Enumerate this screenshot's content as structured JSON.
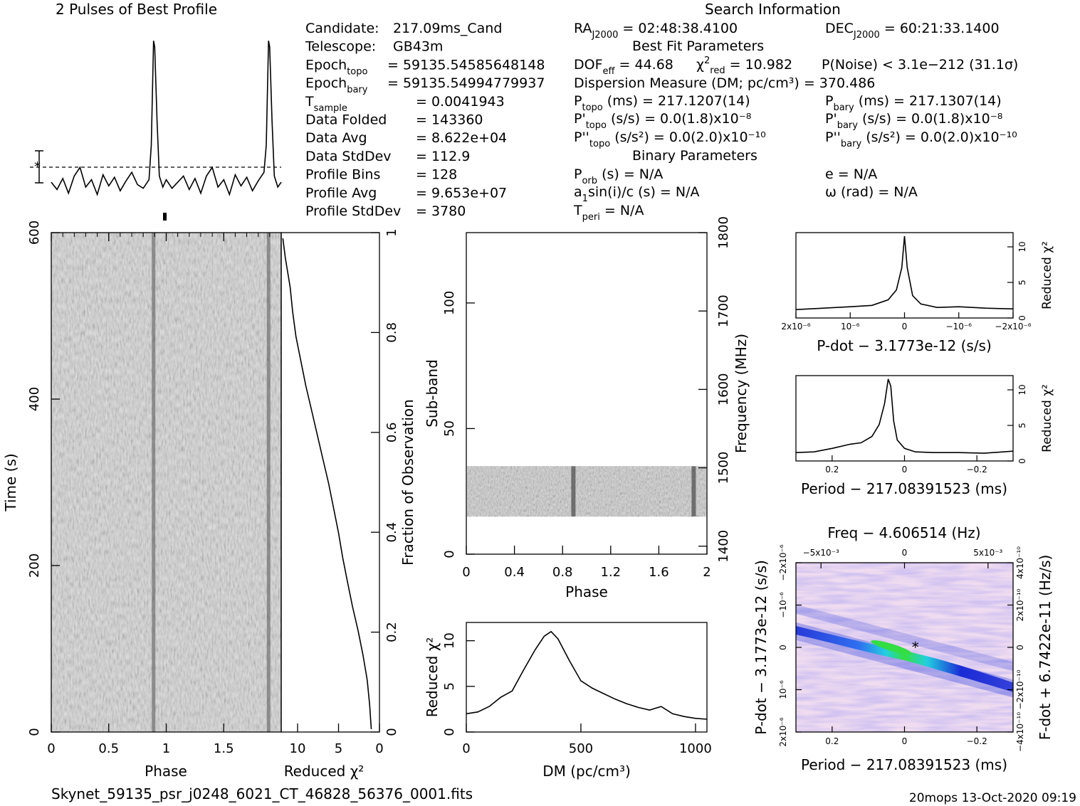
{
  "header": {
    "profile_title": "2 Pulses of Best Profile",
    "search_title": "Search Information",
    "best_fit_title": "Best Fit Parameters",
    "binary_title": "Binary Parameters"
  },
  "candidate_info": [
    {
      "label": "Candidate:",
      "value": "217.09ms_Cand"
    },
    {
      "label": "Telescope:",
      "value": "GB43m"
    },
    {
      "label": "Epoch",
      "sub": "topo",
      "value": "= 59135.54585648148"
    },
    {
      "label": "Epoch",
      "sub": "bary",
      "value": "= 59135.54994779937"
    },
    {
      "label": "T",
      "sub": "sample",
      "value": "=  0.0041943"
    },
    {
      "label": "Data Folded",
      "value": "=  143360"
    },
    {
      "label": "Data Avg",
      "value": "=  8.622e+04"
    },
    {
      "label": "Data StdDev",
      "value": "=  112.9"
    },
    {
      "label": "Profile Bins",
      "value": "=  128"
    },
    {
      "label": "Profile Avg",
      "value": "=  9.653e+07"
    },
    {
      "label": "Profile StdDev",
      "value": "=  3780"
    }
  ],
  "search_info": {
    "ra": {
      "label": "RA",
      "sub": "J2000",
      "value": "= 02:48:38.4100"
    },
    "dec": {
      "label": "DEC",
      "sub": "J2000",
      "value": "= 60:21:33.1400"
    },
    "dof": {
      "label": "DOF",
      "sub": "eff",
      "value": "= 44.68"
    },
    "chi2": {
      "label": "χ",
      "sup": "2",
      "sub": "red",
      "value": "= 10.982"
    },
    "pnoise": "P(Noise) < 3.1e−212  (31.1σ)",
    "dm": "Dispersion Measure (DM; pc/cm³) = 370.486",
    "p_topo": {
      "label": "P",
      "sub": "topo",
      "value": "(ms) =  217.1207(14)"
    },
    "p_bary": {
      "label": "P",
      "sub": "bary",
      "value": "(ms) =  217.1307(14)"
    },
    "pd_topo": {
      "label": "P'",
      "sub": "topo",
      "value": "(s/s) = 0.0(1.8)x10⁻⁸"
    },
    "pd_bary": {
      "label": "P'",
      "sub": "bary",
      "value": "(s/s) = 0.0(1.8)x10⁻⁸"
    },
    "pdd_topo": {
      "label": "P''",
      "sub": "topo",
      "value": "(s/s²) = 0.0(2.0)x10⁻¹⁰"
    },
    "pdd_bary": {
      "label": "P''",
      "sub": "bary",
      "value": "(s/s²) = 0.0(2.0)x10⁻¹⁰"
    },
    "porb": {
      "label": "P",
      "sub": "orb",
      "value": "(s) = N/A"
    },
    "e": "e = N/A",
    "a1sini": {
      "label": "a",
      "sub": "1",
      "value": "sin(i)/c (s) = N/A"
    },
    "omega": "ω (rad) = N/A",
    "tperi": {
      "label": "T",
      "sub": "peri",
      "value": "= N/A"
    }
  },
  "footer": {
    "filename": "Skynet_59135_psr_j0248_6021_CT_46828_56376_0001.fits",
    "stamp": "20mops 13-Oct-2020 09:19"
  },
  "colors": {
    "ink": "#000000",
    "ppdot_low": "#f1d9f1",
    "ppdot_mid": "#2233dd",
    "ppdot_high": "#22dd44"
  },
  "chart_data": [
    {
      "id": "profile",
      "type": "line",
      "title": "2 Pulses of Best Profile",
      "x": [
        0,
        0.05,
        0.1,
        0.15,
        0.2,
        0.25,
        0.3,
        0.35,
        0.4,
        0.45,
        0.5,
        0.55,
        0.6,
        0.65,
        0.7,
        0.75,
        0.8,
        0.85,
        0.87,
        0.89,
        0.9,
        0.92,
        0.94,
        0.97,
        1.0,
        1.05,
        1.1,
        1.15,
        1.2,
        1.25,
        1.3,
        1.35,
        1.4,
        1.45,
        1.5,
        1.55,
        1.6,
        1.65,
        1.7,
        1.75,
        1.8,
        1.85,
        1.87,
        1.89,
        1.9,
        1.92,
        1.94,
        1.97,
        2.0
      ],
      "values": [
        0.0,
        -0.6,
        0.3,
        -0.9,
        0.5,
        1.2,
        -0.4,
        0.2,
        -1.0,
        0.6,
        -0.3,
        0.4,
        -0.7,
        0.1,
        0.8,
        -0.2,
        -0.5,
        0.2,
        3.0,
        11.5,
        11.0,
        5.0,
        0.5,
        -0.4,
        0.2,
        -0.5,
        0.0,
        0.5,
        -0.6,
        0.3,
        -0.9,
        0.5,
        1.2,
        -0.4,
        0.2,
        -1.0,
        0.6,
        -0.3,
        0.4,
        -0.7,
        0.1,
        0.8,
        3.0,
        11.5,
        11.0,
        5.0,
        0.5,
        -0.4,
        0.0
      ],
      "xlabel": "",
      "ylabel": ""
    },
    {
      "id": "time_phase",
      "type": "heatmap",
      "xlabel": "Phase",
      "ylabel": "Time (s)",
      "xlim": [
        0,
        2
      ],
      "ylim": [
        0,
        600
      ],
      "xticks": [
        "0",
        "0.5",
        "1",
        "1.5"
      ],
      "yticks": [
        "0",
        "200",
        "400",
        "600"
      ],
      "pulse_phase": [
        0.89,
        1.89
      ],
      "right_axis_label": "Fraction of Observation",
      "right_ticks": [
        "0",
        "0.2",
        "0.4",
        "0.6",
        "0.8",
        "1"
      ]
    },
    {
      "id": "chi2_vs_time",
      "type": "line",
      "xlabel": "Reduced χ²",
      "xlim": [
        12,
        0
      ],
      "xticks": [
        "10",
        "5",
        "0"
      ],
      "x": [
        1.0,
        1.2,
        1.5,
        2.0,
        2.6,
        3.3,
        3.9,
        4.5,
        5.0,
        5.6,
        6.2,
        6.9,
        7.6,
        8.3,
        9.0,
        9.6,
        10.2,
        10.6,
        10.9,
        11.2,
        11.5,
        11.8
      ],
      "y": [
        0.0,
        0.05,
        0.1,
        0.15,
        0.2,
        0.25,
        0.3,
        0.35,
        0.4,
        0.45,
        0.5,
        0.55,
        0.6,
        0.65,
        0.7,
        0.75,
        0.8,
        0.85,
        0.9,
        0.93,
        0.96,
        1.0
      ]
    },
    {
      "id": "subband_phase",
      "type": "heatmap",
      "xlabel": "Phase",
      "ylabel": "Sub-band",
      "right_label": "Frequency (MHz)",
      "xlim": [
        0,
        2
      ],
      "ylim": [
        0,
        128
      ],
      "xticks": [
        "0",
        "0.4",
        "0.8",
        "1.2",
        "1.6",
        "2"
      ],
      "yticks": [
        "0",
        "50",
        "100"
      ],
      "right_ticks": [
        "1400",
        "1500",
        "1600",
        "1700",
        "1800"
      ],
      "data_band": [
        15,
        35
      ],
      "pulse_phase": [
        0.89,
        1.89
      ]
    },
    {
      "id": "dm_curve",
      "type": "line",
      "xlabel": "DM (pc/cm³)",
      "ylabel": "Reduced χ²",
      "xlim": [
        0,
        1050
      ],
      "ylim": [
        0,
        12
      ],
      "xticks": [
        "0",
        "500",
        "1000"
      ],
      "yticks": [
        "0",
        "5",
        "10"
      ],
      "x": [
        0,
        50,
        100,
        150,
        200,
        250,
        300,
        340,
        370,
        400,
        450,
        500,
        550,
        600,
        650,
        700,
        750,
        800,
        850,
        900,
        950,
        1000,
        1050
      ],
      "y": [
        2.0,
        2.2,
        2.8,
        3.8,
        4.5,
        6.8,
        9.0,
        10.5,
        11.0,
        10.2,
        7.8,
        5.6,
        4.8,
        4.2,
        3.6,
        3.1,
        2.7,
        2.4,
        2.8,
        2.0,
        1.7,
        1.5,
        1.4
      ]
    },
    {
      "id": "pdot_curve",
      "type": "line",
      "xlabel": "P-dot − 3.1773e-12 (s/s)",
      "ylabel": "Reduced χ²",
      "xlim": [
        2e-06,
        -2e-06
      ],
      "ylim": [
        0,
        12
      ],
      "xticks": [
        "2x10⁻⁶",
        "10⁻⁶",
        "0",
        "−10⁻⁶",
        "−2x10⁻⁶"
      ],
      "yticks": [
        "0",
        "5",
        "10"
      ],
      "x": [
        2e-06,
        1.5e-06,
        1e-06,
        6e-07,
        3e-07,
        1.5e-07,
        5e-08,
        0,
        -5e-08,
        -1.5e-07,
        -3e-07,
        -6e-07,
        -1e-06,
        -1.5e-06,
        -2e-06
      ],
      "y": [
        1.0,
        1.2,
        1.4,
        1.6,
        2.4,
        3.8,
        7.0,
        11.5,
        7.0,
        3.0,
        1.8,
        1.3,
        1.4,
        1.2,
        1.1
      ]
    },
    {
      "id": "period_curve",
      "type": "line",
      "xlabel": "Period − 217.08391523 (ms)",
      "ylabel": "Reduced χ²",
      "xlim": [
        0.3,
        -0.3
      ],
      "ylim": [
        0,
        12
      ],
      "xticks": [
        "0.2",
        "0",
        "−0.2"
      ],
      "yticks": [
        "0",
        "5",
        "10"
      ],
      "x": [
        0.3,
        0.25,
        0.2,
        0.15,
        0.12,
        0.09,
        0.07,
        0.055,
        0.045,
        0.038,
        0.03,
        0.02,
        0.0,
        -0.03,
        -0.08,
        -0.15,
        -0.22,
        -0.3
      ],
      "y": [
        1.0,
        1.1,
        1.6,
        2.2,
        2.4,
        3.3,
        5.0,
        8.0,
        11.5,
        10.5,
        5.5,
        2.8,
        1.6,
        1.1,
        1.0,
        1.0,
        0.9,
        1.2
      ]
    },
    {
      "id": "ppdot_map",
      "type": "heatmap",
      "title": "Freq − 4.606514 (Hz)",
      "xlabel": "Period − 217.08391523 (ms)",
      "ylabel": "P-dot − 3.1773e-12 (s/s)",
      "right_label": "F-dot + 6.7422e-11 (Hz/s)",
      "xticks": [
        "0.2",
        "0",
        "−0.2"
      ],
      "top_ticks": [
        "−5x10⁻³",
        "0",
        "5x10⁻³"
      ],
      "yticks": [
        "2x10⁻⁶",
        "10⁻⁶",
        "0",
        "−10⁻⁶",
        "−2x10⁻⁶"
      ],
      "right_ticks": [
        "−4x10⁻¹⁰",
        "−2x10⁻¹⁰",
        "0",
        "2x10⁻¹⁰",
        "4x10⁻¹⁰"
      ],
      "best": {
        "period": -0.03,
        "pdot": 0
      }
    }
  ]
}
